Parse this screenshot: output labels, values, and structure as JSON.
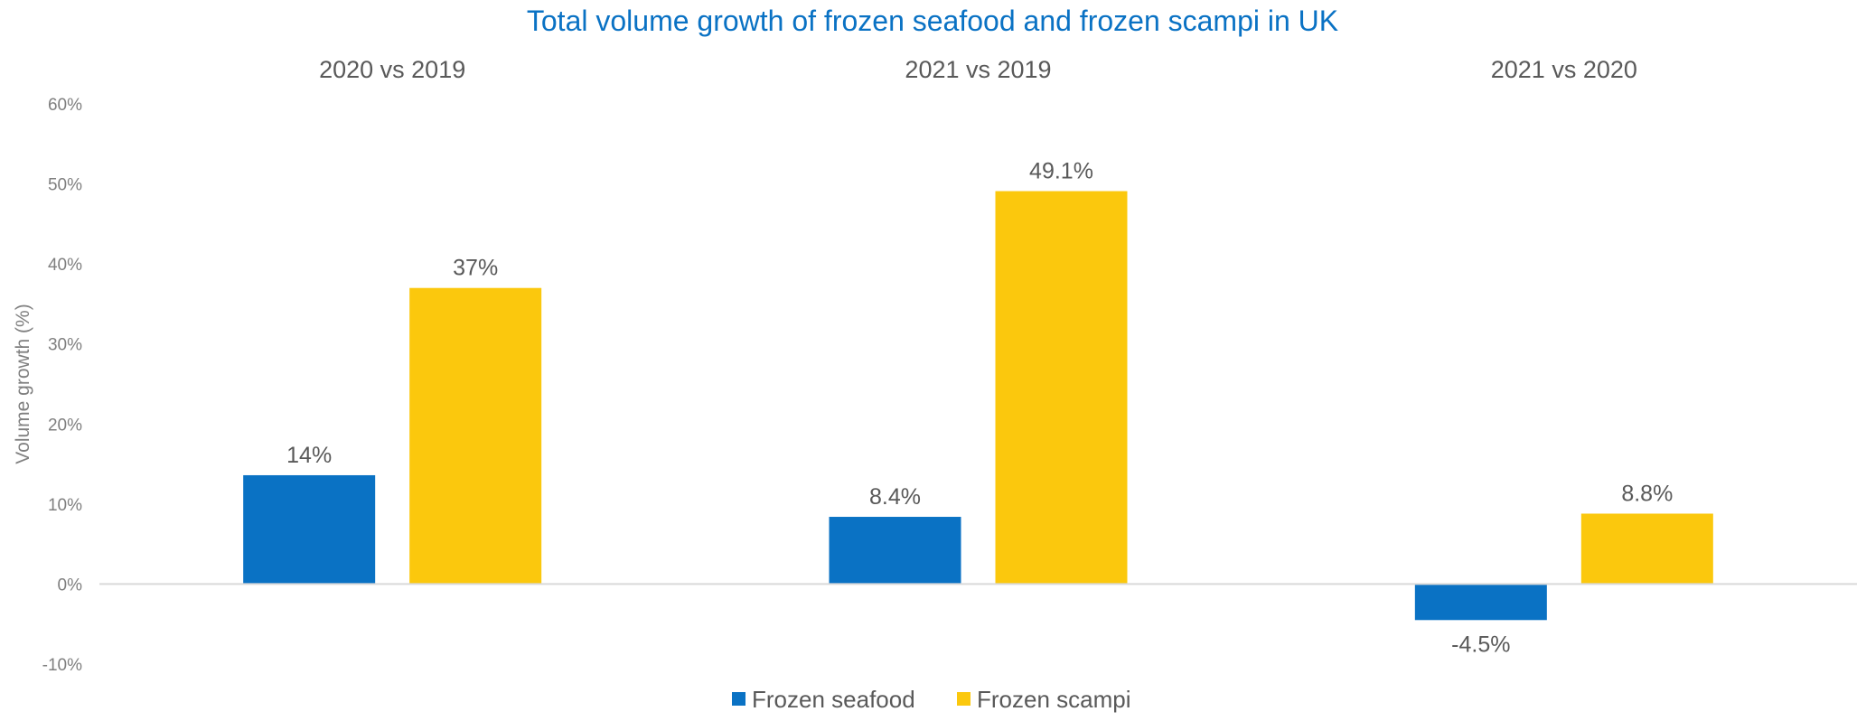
{
  "chart_data": {
    "type": "bar",
    "title": "Total volume growth of frozen seafood and frozen scampi in UK",
    "ylabel": "Volume growth (%)",
    "xlabel": "",
    "categories": [
      "2020 vs 2019",
      "2021 vs 2019",
      "2021 vs 2020"
    ],
    "series": [
      {
        "name": "Frozen seafood",
        "color": "#0a72c4",
        "values": [
          13.6,
          8.4,
          -4.5
        ],
        "labels": [
          "14%",
          "8.4%",
          "-4.5%"
        ]
      },
      {
        "name": "Frozen scampi",
        "color": "#fbc80d",
        "values": [
          37,
          49.1,
          8.8
        ],
        "labels": [
          "37%",
          "49.1%",
          "8.8%"
        ]
      }
    ],
    "ylim": [
      -10,
      60
    ],
    "yticks": [
      -10,
      0,
      10,
      20,
      30,
      40,
      50,
      60
    ],
    "ytick_labels": [
      "-10%",
      "0%",
      "10%",
      "20%",
      "30%",
      "40%",
      "50%",
      "60%"
    ],
    "grid": false,
    "legend_position": "bottom-center"
  }
}
